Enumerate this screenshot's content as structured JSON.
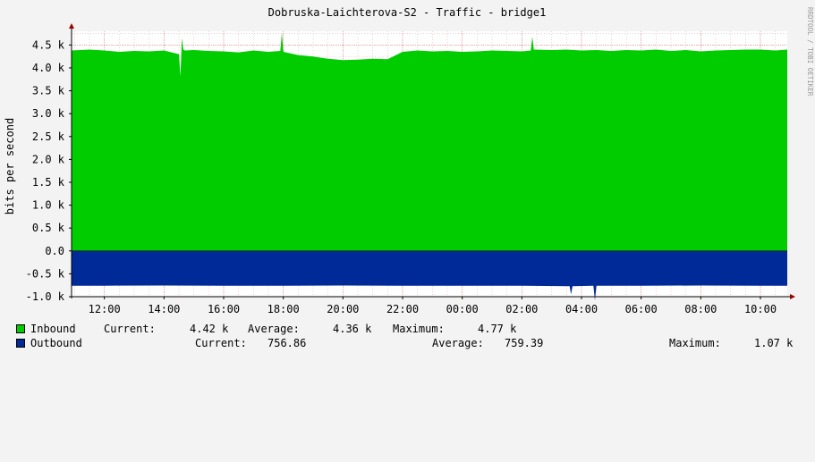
{
  "chart_data": {
    "type": "area",
    "title": "Dobruska-Laichterova-S2 - Traffic - bridge1",
    "watermark": "RRDTOOL / TOBI OETIKER",
    "ylabel": "bits per second",
    "ylim": [
      -1000,
      4800
    ],
    "y_ticks": [
      {
        "value": 4500,
        "label": "4.5 k"
      },
      {
        "value": 4000,
        "label": "4.0 k"
      },
      {
        "value": 3500,
        "label": "3.5 k"
      },
      {
        "value": 3000,
        "label": "3.0 k"
      },
      {
        "value": 2500,
        "label": "2.5 k"
      },
      {
        "value": 2000,
        "label": "2.0 k"
      },
      {
        "value": 1500,
        "label": "1.5 k"
      },
      {
        "value": 1000,
        "label": "1.0 k"
      },
      {
        "value": 500,
        "label": "0.5 k"
      },
      {
        "value": 0,
        "label": "0.0"
      },
      {
        "value": -500,
        "label": "-0.5 k"
      },
      {
        "value": -1000,
        "label": "-1.0 k"
      }
    ],
    "x_range": [
      10.9,
      34.9
    ],
    "x_ticks": [
      {
        "value": 12,
        "label": "12:00"
      },
      {
        "value": 14,
        "label": "14:00"
      },
      {
        "value": 16,
        "label": "16:00"
      },
      {
        "value": 18,
        "label": "18:00"
      },
      {
        "value": 20,
        "label": "20:00"
      },
      {
        "value": 22,
        "label": "22:00"
      },
      {
        "value": 24,
        "label": "00:00"
      },
      {
        "value": 26,
        "label": "02:00"
      },
      {
        "value": 28,
        "label": "04:00"
      },
      {
        "value": 30,
        "label": "06:00"
      },
      {
        "value": 32,
        "label": "08:00"
      },
      {
        "value": 34,
        "label": "10:00"
      }
    ],
    "colors": {
      "inbound": "#00cc00",
      "outbound": "#002a97",
      "background": "#f3f3f3",
      "plot": "#ffffff",
      "grid": "#e0a0a0",
      "axis_arrow": "#990000"
    },
    "series": [
      {
        "name": "Inbound",
        "color": "#00cc00",
        "x": [
          10.9,
          11.5,
          12.0,
          12.5,
          13.0,
          13.5,
          14.0,
          14.5,
          14.55,
          14.6,
          14.65,
          14.7,
          15.0,
          15.5,
          16.0,
          16.5,
          17.0,
          17.5,
          17.9,
          17.95,
          18.0,
          18.5,
          19.0,
          19.5,
          20.0,
          20.5,
          21.0,
          21.5,
          22.0,
          22.5,
          23.0,
          23.5,
          24.0,
          24.5,
          25.0,
          25.5,
          26.0,
          26.3,
          26.35,
          26.4,
          27.0,
          27.5,
          28.0,
          28.5,
          29.0,
          29.5,
          30.0,
          30.5,
          31.0,
          31.5,
          32.0,
          32.5,
          33.0,
          33.5,
          34.0,
          34.5,
          34.9
        ],
        "values": [
          4380,
          4400,
          4380,
          4350,
          4370,
          4360,
          4380,
          4300,
          3820,
          4650,
          4400,
          4380,
          4390,
          4370,
          4360,
          4340,
          4380,
          4350,
          4370,
          4760,
          4350,
          4280,
          4250,
          4200,
          4170,
          4180,
          4200,
          4190,
          4350,
          4380,
          4360,
          4370,
          4350,
          4360,
          4380,
          4370,
          4360,
          4380,
          4680,
          4400,
          4390,
          4400,
          4380,
          4390,
          4370,
          4390,
          4380,
          4400,
          4370,
          4390,
          4360,
          4380,
          4390,
          4400,
          4400,
          4380,
          4400
        ]
      },
      {
        "name": "Outbound",
        "color": "#002a97",
        "x": [
          10.9,
          12.0,
          14.0,
          16.0,
          18.0,
          20.0,
          22.0,
          24.0,
          26.0,
          27.6,
          27.65,
          27.7,
          28.4,
          28.45,
          28.5,
          30.0,
          32.0,
          34.0,
          34.9
        ],
        "values": [
          -760,
          -760,
          -755,
          -760,
          -760,
          -755,
          -760,
          -760,
          -760,
          -770,
          -950,
          -770,
          -760,
          -1080,
          -760,
          -760,
          -755,
          -760,
          -760
        ]
      }
    ],
    "legend": [
      {
        "name": "Inbound",
        "current_label": "Current:",
        "current": "4.42 k",
        "average_label": "Average:",
        "average": "4.36 k",
        "maximum_label": "Maximum:",
        "maximum": "4.77 k"
      },
      {
        "name": "Outbound",
        "current_label": "Current:",
        "current": "756.86",
        "average_label": "Average:",
        "average": "759.39",
        "maximum_label": "Maximum:",
        "maximum": "1.07 k"
      }
    ]
  }
}
